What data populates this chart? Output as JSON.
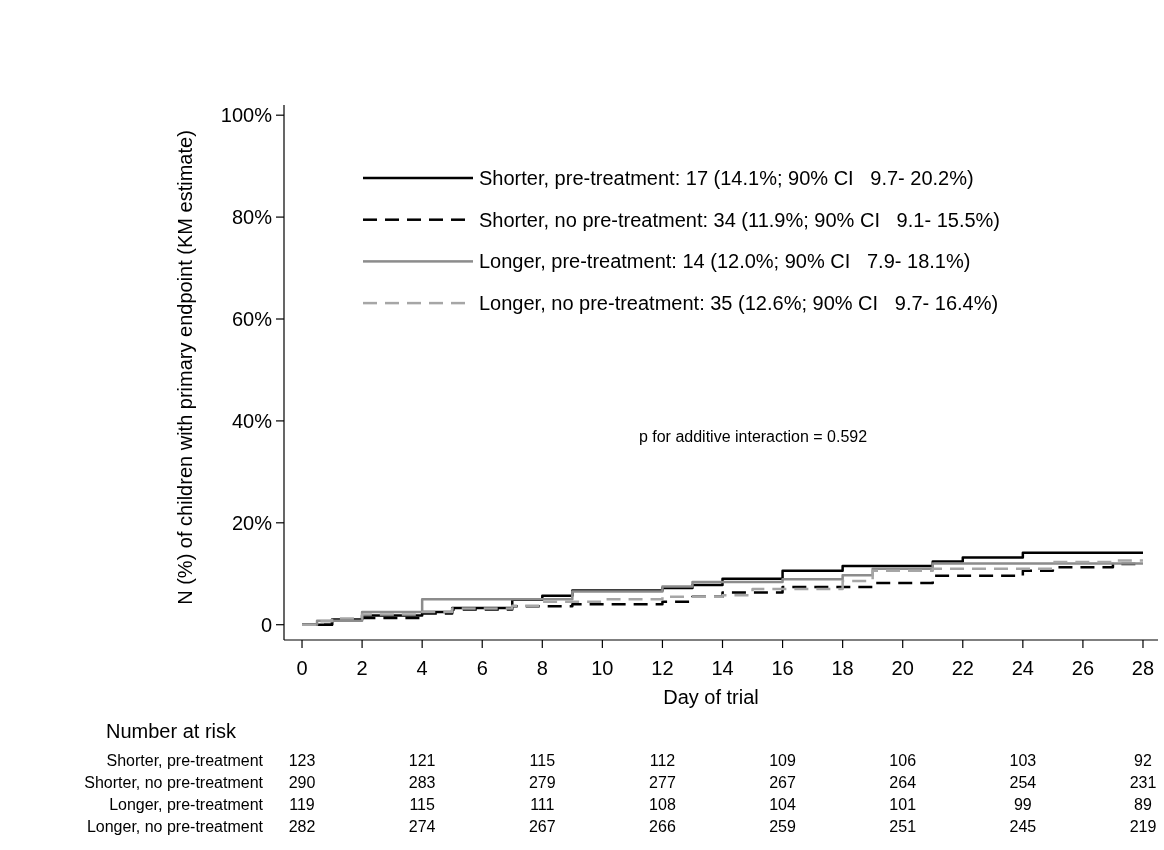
{
  "chart_data": {
    "type": "step",
    "xlabel": "Day of trial",
    "ylabel": "N (%) of children with primary endpoint (KM estimate)",
    "xlim": [
      -0.6,
      28.5
    ],
    "xticks": [
      0,
      2,
      4,
      6,
      8,
      10,
      12,
      14,
      16,
      18,
      20,
      22,
      24,
      26,
      28
    ],
    "ylim": [
      -3,
      102
    ],
    "yticks": [
      {
        "value": 0,
        "label": "0"
      },
      {
        "value": 20,
        "label": "20%"
      },
      {
        "value": 40,
        "label": "40%"
      },
      {
        "value": 60,
        "label": "60%"
      },
      {
        "value": 80,
        "label": "80%"
      },
      {
        "value": 100,
        "label": "100%"
      }
    ],
    "legend": "top right",
    "grid": false,
    "series": [
      {
        "name": "Shorter, pre-treatment: 17 (14.1%; 90% CI   9.7- 20.2%)",
        "color": "#000000",
        "line_style": "solid",
        "x": [
          0,
          1,
          2,
          4,
          5,
          7,
          8,
          9,
          12,
          13,
          14,
          16,
          18,
          21,
          22,
          24,
          28
        ],
        "values": [
          0,
          1.0,
          1.8,
          2.5,
          3.3,
          4.9,
          5.7,
          6.7,
          7.2,
          7.8,
          9.0,
          10.6,
          11.5,
          12.4,
          13.2,
          14.1,
          14.1
        ]
      },
      {
        "name": "Shorter, no pre-treatment: 34 (11.9%; 90% CI   9.1- 15.5%)",
        "color": "#000000",
        "line_style": "dashed",
        "x": [
          0,
          1,
          2,
          4,
          5,
          7,
          9,
          12,
          13,
          14,
          16,
          19,
          21,
          24,
          25,
          27,
          28
        ],
        "values": [
          0,
          0.8,
          1.3,
          2.2,
          3.0,
          3.6,
          4.0,
          4.5,
          5.5,
          6.3,
          7.4,
          8.2,
          9.6,
          10.6,
          11.3,
          11.9,
          11.9
        ]
      },
      {
        "name": "Longer, pre-treatment: 14 (12.0%; 90% CI   7.9- 18.1%)",
        "color": "#8c8c8c",
        "line_style": "solid",
        "x": [
          0,
          0.5,
          2,
          4,
          9,
          12,
          13,
          16,
          18,
          19,
          21,
          28
        ],
        "values": [
          0,
          0.8,
          2.5,
          5.0,
          6.5,
          7.5,
          8.4,
          8.9,
          9.7,
          11.0,
          12.0,
          12.0
        ]
      },
      {
        "name": "Longer, no pre-treatment: 35 (12.6%; 90% CI   9.7- 16.4%)",
        "color": "#a6a6a6",
        "line_style": "dashed",
        "x": [
          0,
          0.5,
          1,
          2,
          4,
          5,
          7,
          8,
          10,
          12,
          14,
          15,
          18,
          19,
          21,
          25,
          27,
          28
        ],
        "values": [
          0,
          0.7,
          1.2,
          2.0,
          2.5,
          3.2,
          3.7,
          4.5,
          5.0,
          5.5,
          5.8,
          7.0,
          8.6,
          10.6,
          11.0,
          12.3,
          12.6,
          12.6
        ]
      }
    ],
    "annotations": [
      "p for additive interaction = 0.592",
      "Number at risk",
      "Shorter, pre-treatment",
      "123",
      "121",
      "115",
      "112",
      "109",
      "106",
      "103",
      "92",
      "Shorter, no pre-treatment",
      "290",
      "283",
      "279",
      "277",
      "267",
      "264",
      "254",
      "231",
      "Longer, pre-treatment",
      "119",
      "115",
      "111",
      "108",
      "104",
      "101",
      "99",
      "89",
      "Longer, no pre-treatment",
      "282",
      "274",
      "267",
      "266",
      "259",
      "251",
      "245",
      "219"
    ]
  }
}
